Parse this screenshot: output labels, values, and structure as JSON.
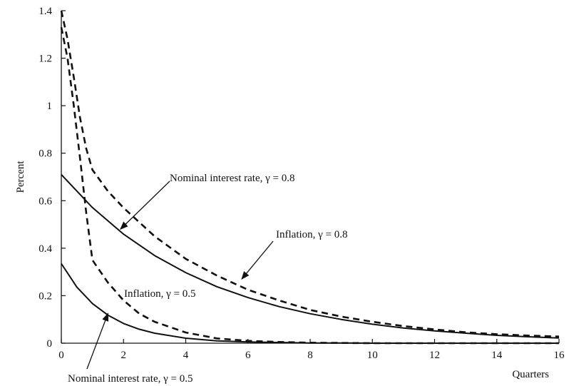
{
  "chart_data": {
    "type": "line",
    "title": "",
    "xlabel": "Quarters",
    "ylabel": "Percent",
    "xlim": [
      0,
      16
    ],
    "ylim": [
      0,
      1.4
    ],
    "grid": false,
    "legend": "none",
    "x_ticks": [
      0,
      2,
      4,
      6,
      8,
      10,
      12,
      14,
      16
    ],
    "x_tick_labels": [
      "0",
      "2",
      "4",
      "6",
      "8",
      "10",
      "12",
      "14",
      "16"
    ],
    "y_ticks": [
      0,
      0.2,
      0.4,
      0.6,
      0.8,
      1,
      1.2,
      1.4
    ],
    "y_tick_labels": [
      "0",
      "0.2",
      "0.4",
      "0.6",
      "0.8",
      "1",
      "1.2",
      "1.4"
    ],
    "series": [
      {
        "label": "Nominal interest rate, γ = 0.8",
        "style": "solid",
        "color": "#111111",
        "x": [
          0,
          1,
          2,
          3,
          4,
          5,
          6,
          7,
          8,
          9,
          10,
          11,
          12,
          13,
          14,
          15,
          16
        ],
        "y": [
          0.71,
          0.571,
          0.459,
          0.369,
          0.297,
          0.238,
          0.192,
          0.154,
          0.124,
          0.1,
          0.08,
          0.064,
          0.052,
          0.042,
          0.033,
          0.027,
          0.022
        ]
      },
      {
        "label": "Inflation, γ = 0.8",
        "style": "dashed",
        "color": "#111111",
        "x": [
          0,
          0.2,
          0.4,
          0.6,
          0.8,
          1.0,
          1.5,
          2,
          3,
          4,
          5,
          6,
          7,
          8,
          9,
          10,
          11,
          12,
          13,
          14,
          15,
          16
        ],
        "y": [
          1.4,
          1.28,
          1.12,
          0.95,
          0.82,
          0.73,
          0.64,
          0.57,
          0.45,
          0.355,
          0.285,
          0.225,
          0.18,
          0.14,
          0.112,
          0.09,
          0.072,
          0.058,
          0.046,
          0.038,
          0.032,
          0.028
        ]
      },
      {
        "label": "Nominal interest rate, γ = 0.5",
        "style": "solid",
        "color": "#111111",
        "x": [
          0,
          0.5,
          1,
          1.5,
          2,
          2.5,
          3,
          4,
          5,
          6,
          7,
          8,
          9,
          10,
          12,
          14,
          16
        ],
        "y": [
          0.335,
          0.236,
          0.167,
          0.118,
          0.083,
          0.059,
          0.042,
          0.021,
          0.01,
          0.005,
          0.003,
          0.001,
          0.001,
          0.0,
          0.0,
          0.0,
          0.0
        ]
      },
      {
        "label": "Inflation, γ = 0.5",
        "style": "dashed",
        "color": "#111111",
        "x": [
          0,
          0.2,
          0.4,
          0.6,
          0.8,
          1.0,
          1.5,
          2,
          2.5,
          3,
          4,
          5,
          6,
          7,
          8,
          10,
          12,
          14,
          16
        ],
        "y": [
          1.33,
          1.2,
          1.0,
          0.78,
          0.55,
          0.35,
          0.255,
          0.18,
          0.125,
          0.09,
          0.045,
          0.02,
          0.01,
          0.005,
          0.002,
          0.0,
          0.0,
          0.0,
          0.0
        ]
      }
    ],
    "annotations": [
      {
        "id": "ann-nir08",
        "text": "Nominal interest rate, γ = 0.8",
        "target_x": 1.9,
        "target_y": 0.48
      },
      {
        "id": "ann-inf08",
        "text": "Inflation, γ = 0.8",
        "target_x": 5.8,
        "target_y": 0.27
      },
      {
        "id": "ann-inf05",
        "text": "Inflation, γ = 0.5",
        "target_x": null,
        "target_y": null
      },
      {
        "id": "ann-nir05",
        "text": "Nominal interest rate, γ = 0.5",
        "target_x": 1.5,
        "target_y": 0.125
      }
    ]
  }
}
